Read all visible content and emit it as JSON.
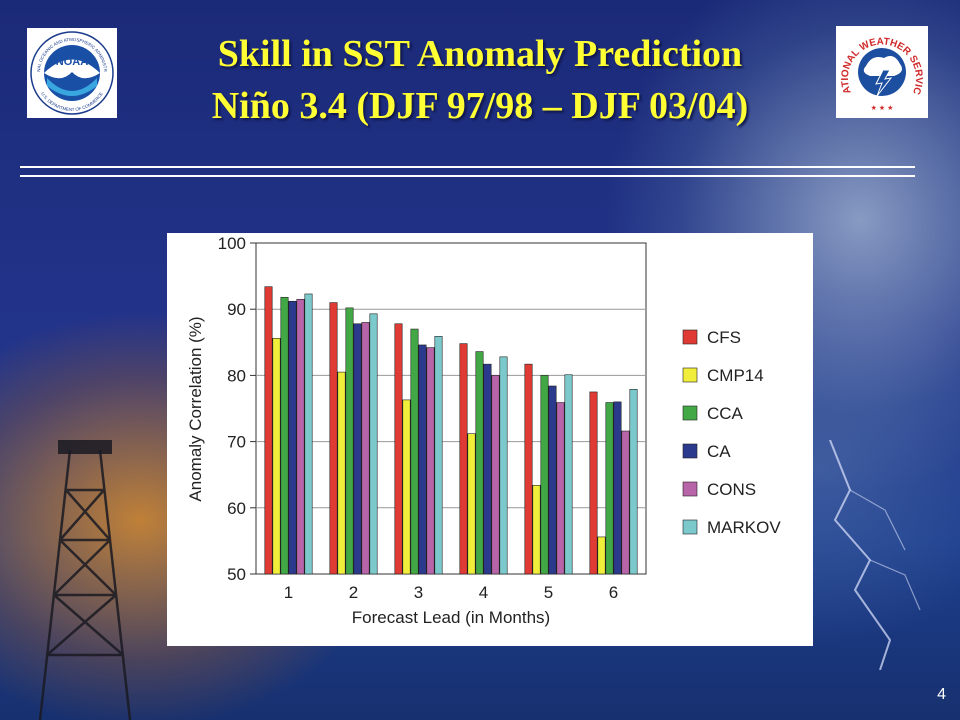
{
  "slide": {
    "title_line1": "Skill in SST Anomaly Prediction",
    "title_line2": "Niño 3.4 (DJF 97/98 – DJF 03/04)",
    "page_number": "4",
    "left_logo_icon": "noaa-logo-icon",
    "right_logo_icon": "nws-logo-icon",
    "logo_texts": {
      "noaa_center": "NOAA",
      "noaa_ring_top": "NATIONAL OCEANIC AND ATMOSPHERIC ADMINISTRATION",
      "noaa_ring_bottom": "U.S. DEPARTMENT OF COMMERCE",
      "nws_ring_top": "NATIONAL WEATHER SERVICE"
    }
  },
  "chart_data": {
    "type": "bar",
    "title": "",
    "xlabel": "Forecast Lead (in Months)",
    "ylabel": "Anomaly Correlation (%)",
    "ylim": [
      50,
      100
    ],
    "yticks": [
      50,
      60,
      70,
      80,
      90,
      100
    ],
    "grid": true,
    "legend_position": "right",
    "categories": [
      "1",
      "2",
      "3",
      "4",
      "5",
      "6"
    ],
    "series": [
      {
        "name": "CFS",
        "color": "#e03a34",
        "values": [
          93.4,
          91.0,
          87.8,
          84.8,
          81.7,
          77.5
        ]
      },
      {
        "name": "CMP14",
        "color": "#f0ee3a",
        "values": [
          85.6,
          80.5,
          76.3,
          71.2,
          63.4,
          55.6
        ]
      },
      {
        "name": "CCA",
        "color": "#42a845",
        "values": [
          91.8,
          90.2,
          87.0,
          83.6,
          80.0,
          75.9
        ]
      },
      {
        "name": "CA",
        "color": "#2b3a8c",
        "values": [
          91.2,
          87.8,
          84.6,
          81.7,
          78.4,
          76.0
        ]
      },
      {
        "name": "CONS",
        "color": "#b765a8",
        "values": [
          91.5,
          88.0,
          84.2,
          80.0,
          75.9,
          71.6
        ]
      },
      {
        "name": "MARKOV",
        "color": "#7cc9cc",
        "values": [
          92.3,
          89.3,
          85.9,
          82.8,
          80.1,
          77.9
        ]
      }
    ]
  }
}
